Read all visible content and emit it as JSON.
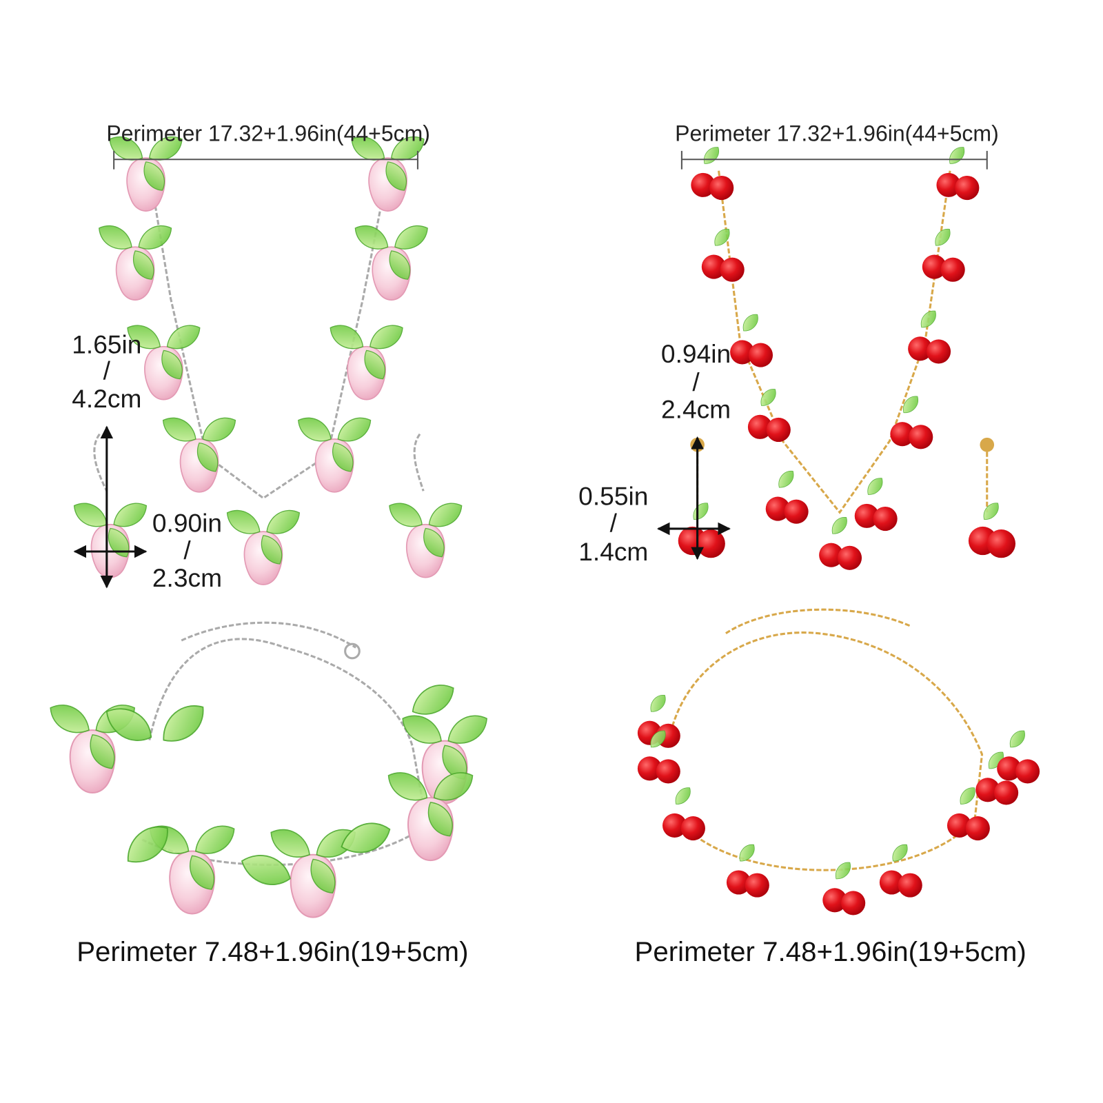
{
  "left_set": {
    "necklace_perimeter": "Perimeter 17.32+1.96in(44+5cm)",
    "pendant_size": [
      "1.65in",
      "/",
      "4.2cm"
    ],
    "earring_size": [
      "0.90in",
      "/",
      "2.3cm"
    ],
    "bracelet_perimeter": "Perimeter 7.48+1.96in(19+5cm)"
  },
  "right_set": {
    "necklace_perimeter": "Perimeter 17.32+1.96in(44+5cm)",
    "pendant_size": [
      "0.94in",
      "/",
      "2.4cm"
    ],
    "earring_size": [
      "0.55in",
      "/",
      "1.4cm"
    ],
    "bracelet_perimeter": "Perimeter 7.48+1.96in(19+5cm)"
  }
}
